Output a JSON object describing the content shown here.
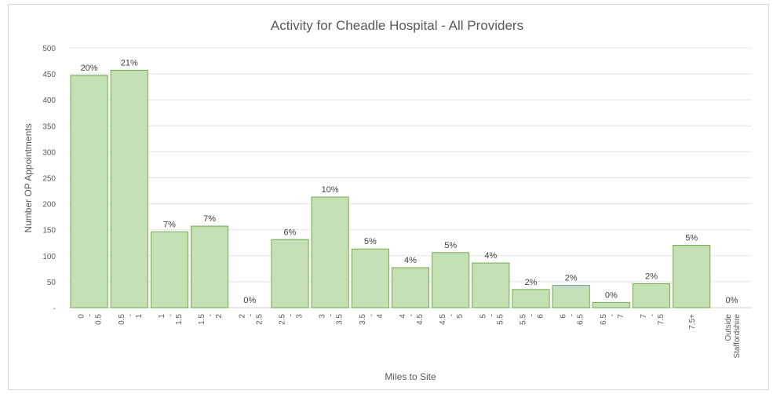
{
  "chart_data": {
    "type": "bar",
    "title": "Activity for Cheadle Hospital - All Providers",
    "xlabel": "Miles to Site",
    "ylabel": "Number OP Appointments",
    "ylim": [
      0,
      500
    ],
    "yticks": [
      0,
      50,
      100,
      150,
      200,
      250,
      300,
      350,
      400,
      450,
      500
    ],
    "ytick_labels": [
      "-",
      "50",
      "100",
      "150",
      "200",
      "250",
      "300",
      "350",
      "400",
      "450",
      "500"
    ],
    "grid": true,
    "legend": "none",
    "bar_color": "#c5e0b4",
    "bar_edge_color": "#70ad47",
    "categories": [
      [
        "0",
        "-",
        "0.5"
      ],
      [
        "0.5",
        "-",
        "1"
      ],
      [
        "1",
        "-",
        "1.5"
      ],
      [
        "1.5",
        "-",
        "2"
      ],
      [
        "2",
        "-",
        "2.5"
      ],
      [
        "2.5",
        "-",
        "3"
      ],
      [
        "3",
        "-",
        "3.5"
      ],
      [
        "3.5",
        "-",
        "4"
      ],
      [
        "4",
        "-",
        "4.5"
      ],
      [
        "4.5",
        "-",
        "5"
      ],
      [
        "5",
        "-",
        "5.5"
      ],
      [
        "5.5",
        "-",
        "6"
      ],
      [
        "6",
        "-",
        "6.5"
      ],
      [
        "6.5",
        "-",
        "7"
      ],
      [
        "7",
        "-",
        "7.5"
      ],
      [
        "7.5+"
      ],
      [
        "Outside",
        "Staffordshire"
      ]
    ],
    "values": [
      447,
      457,
      146,
      157,
      0,
      131,
      213,
      113,
      77,
      106,
      86,
      35,
      43,
      10,
      46,
      120,
      0
    ],
    "data_labels": [
      "20%",
      "21%",
      "7%",
      "7%",
      "0%",
      "6%",
      "10%",
      "5%",
      "4%",
      "5%",
      "4%",
      "2%",
      "2%",
      "0%",
      "2%",
      "5%",
      "0%"
    ]
  }
}
